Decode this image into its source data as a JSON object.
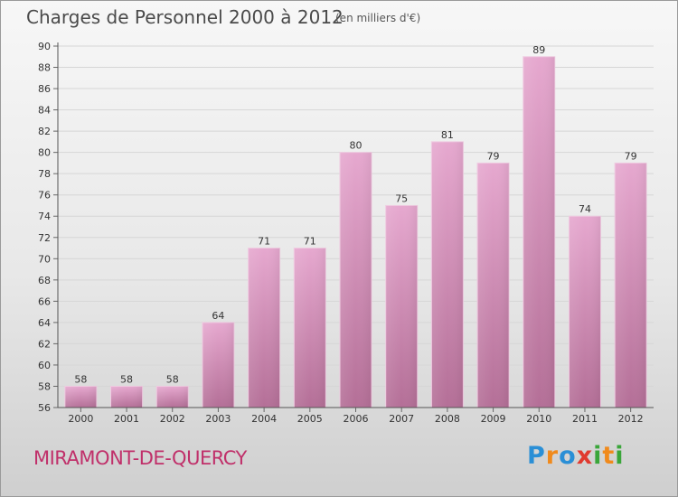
{
  "header": {
    "title": "Charges de Personnel 2000 à 2012",
    "subtitle": "(en milliers d'€)"
  },
  "footer": {
    "commune": "MIRAMONT-DE-QUERCY",
    "logo_letters": [
      "P",
      "r",
      "o",
      "x",
      "i",
      "t",
      "i"
    ]
  },
  "colors": {
    "bar_top": "#e6a8cf",
    "bar_bottom": "#b46f97",
    "commune_text": "#c0306a"
  },
  "chart_data": {
    "type": "bar",
    "categories": [
      "2000",
      "2001",
      "2002",
      "2003",
      "2004",
      "2005",
      "2006",
      "2007",
      "2008",
      "2009",
      "2010",
      "2011",
      "2012"
    ],
    "values": [
      58,
      58,
      58,
      64,
      71,
      71,
      80,
      75,
      81,
      79,
      89,
      74,
      79
    ],
    "ylim": [
      56,
      90
    ],
    "yticks": [
      56,
      58,
      60,
      62,
      64,
      66,
      68,
      70,
      72,
      74,
      76,
      78,
      80,
      82,
      84,
      86,
      88,
      90
    ],
    "data_labels": true,
    "grid": true
  }
}
